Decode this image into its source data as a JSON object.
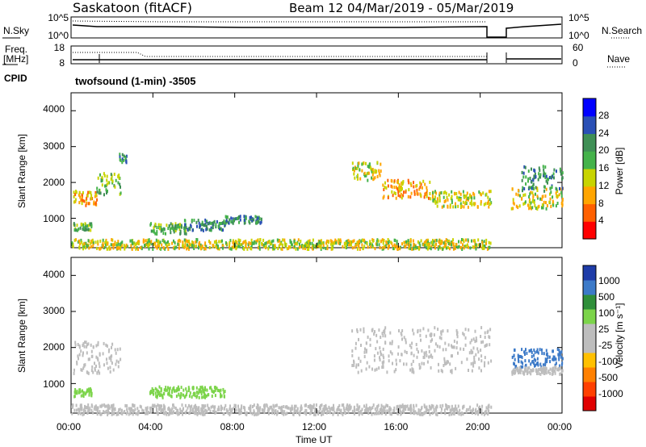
{
  "header": {
    "station": "Saskatoon (fitACF)",
    "beam_dates": "Beam 12  04/Mar/2019 - 05/Mar/2019"
  },
  "top_panels": {
    "nsky_label": "N.Sky",
    "nsearch_label": "N.Search",
    "nsky_ticks": [
      "10^5",
      "10^0"
    ],
    "nsearch_ticks": [
      "10^5",
      "10^0"
    ],
    "freq_label_1": "Freq.",
    "freq_label_2": "[MHz]",
    "freq_ticks": [
      "18",
      "8"
    ],
    "nave_label": "Nave",
    "nave_ticks": [
      "60",
      "0"
    ],
    "cpid_label": "CPID",
    "cpid_text": "twofsound (1-min) -3505"
  },
  "power_panel": {
    "ylabel": "Slant Range [km]",
    "yticks": [
      "4000",
      "3000",
      "2000",
      "1000"
    ],
    "colorbar_label": "Power [dB]",
    "colorbar_ticks": [
      "28",
      "24",
      "20",
      "16",
      "12",
      "8",
      "4"
    ]
  },
  "velocity_panel": {
    "ylabel": "Slant Range [km]",
    "yticks": [
      "4000",
      "3000",
      "2000",
      "1000"
    ],
    "colorbar_label": "Velocity [m s⁻¹]",
    "colorbar_ticks": [
      "1000",
      "500",
      "100",
      "25",
      "-25",
      "-100",
      "-500",
      "-1000"
    ]
  },
  "x_axis": {
    "ticks": [
      "00:00",
      "04:00",
      "08:00",
      "12:00",
      "16:00",
      "20:00",
      "00:00"
    ],
    "label": "Time UT"
  },
  "colors": {
    "power_scale": [
      "#0000ff",
      "#2a4fb5",
      "#3f8f55",
      "#44b24a",
      "#c8d400",
      "#ffa500",
      "#ff6000",
      "#ff0000"
    ],
    "velocity_scale": [
      "#1e3ca8",
      "#3c7ac8",
      "#2f8f3a",
      "#7cd44a",
      "#bdbdbd",
      "#bdbdbd",
      "#ffc000",
      "#ff8000",
      "#ff4000",
      "#e00000"
    ]
  },
  "chart_data": {
    "type": "heatmap",
    "x": {
      "range_hours": [
        0,
        24
      ],
      "ticks": [
        "00:00",
        "04:00",
        "08:00",
        "12:00",
        "16:00",
        "20:00",
        "00:00"
      ]
    },
    "y": {
      "range_km": [
        180,
        4500
      ],
      "ticks": [
        1000,
        2000,
        3000,
        4000
      ]
    },
    "power_features": [
      {
        "t0": 0.1,
        "t1": 1.3,
        "r0": 1400,
        "r1": 1800,
        "level": 22
      },
      {
        "t0": 1.2,
        "t1": 2.4,
        "r0": 1700,
        "r1": 2300,
        "level": 14
      },
      {
        "t0": 2.3,
        "t1": 2.7,
        "r0": 2600,
        "r1": 2850,
        "level": 8
      },
      {
        "t0": 0.1,
        "t1": 1.0,
        "r0": 700,
        "r1": 900,
        "level": 14
      },
      {
        "t0": 3.8,
        "t1": 5.6,
        "r0": 600,
        "r1": 900,
        "level": 12
      },
      {
        "t0": 5.5,
        "t1": 7.5,
        "r0": 700,
        "r1": 1000,
        "level": 10
      },
      {
        "t0": 7.5,
        "t1": 9.3,
        "r0": 900,
        "r1": 1100,
        "level": 8
      },
      {
        "t0": 0.0,
        "t1": 20.5,
        "r0": 180,
        "r1": 450,
        "level": 16
      },
      {
        "t0": 13.7,
        "t1": 15.2,
        "r0": 2100,
        "r1": 2600,
        "level": 18
      },
      {
        "t0": 15.2,
        "t1": 17.5,
        "r0": 1600,
        "r1": 2100,
        "level": 20
      },
      {
        "t0": 17.5,
        "t1": 20.5,
        "r0": 1350,
        "r1": 1800,
        "level": 16
      },
      {
        "t0": 21.5,
        "t1": 24.0,
        "r0": 1300,
        "r1": 1900,
        "level": 18
      },
      {
        "t0": 22.0,
        "t1": 24.0,
        "r0": 1800,
        "r1": 2500,
        "level": 8
      }
    ],
    "velocity_features": [
      {
        "t0": 0.1,
        "t1": 2.4,
        "r0": 1300,
        "r1": 2200,
        "level": 25
      },
      {
        "t0": 0.1,
        "t1": 1.0,
        "r0": 650,
        "r1": 900,
        "level": 100
      },
      {
        "t0": 3.8,
        "t1": 7.5,
        "r0": 650,
        "r1": 950,
        "level": 100
      },
      {
        "t0": 0.0,
        "t1": 20.5,
        "r0": 180,
        "r1": 450,
        "level": -25
      },
      {
        "t0": 13.7,
        "t1": 20.5,
        "r0": 1350,
        "r1": 2600,
        "level": 25
      },
      {
        "t0": 21.5,
        "t1": 24.0,
        "r0": 1500,
        "r1": 2000,
        "level": 500
      },
      {
        "t0": 21.5,
        "t1": 24.0,
        "r0": 1300,
        "r1": 1500,
        "level": 25
      }
    ],
    "data_gap_hours": [
      20.5,
      21.5
    ]
  }
}
